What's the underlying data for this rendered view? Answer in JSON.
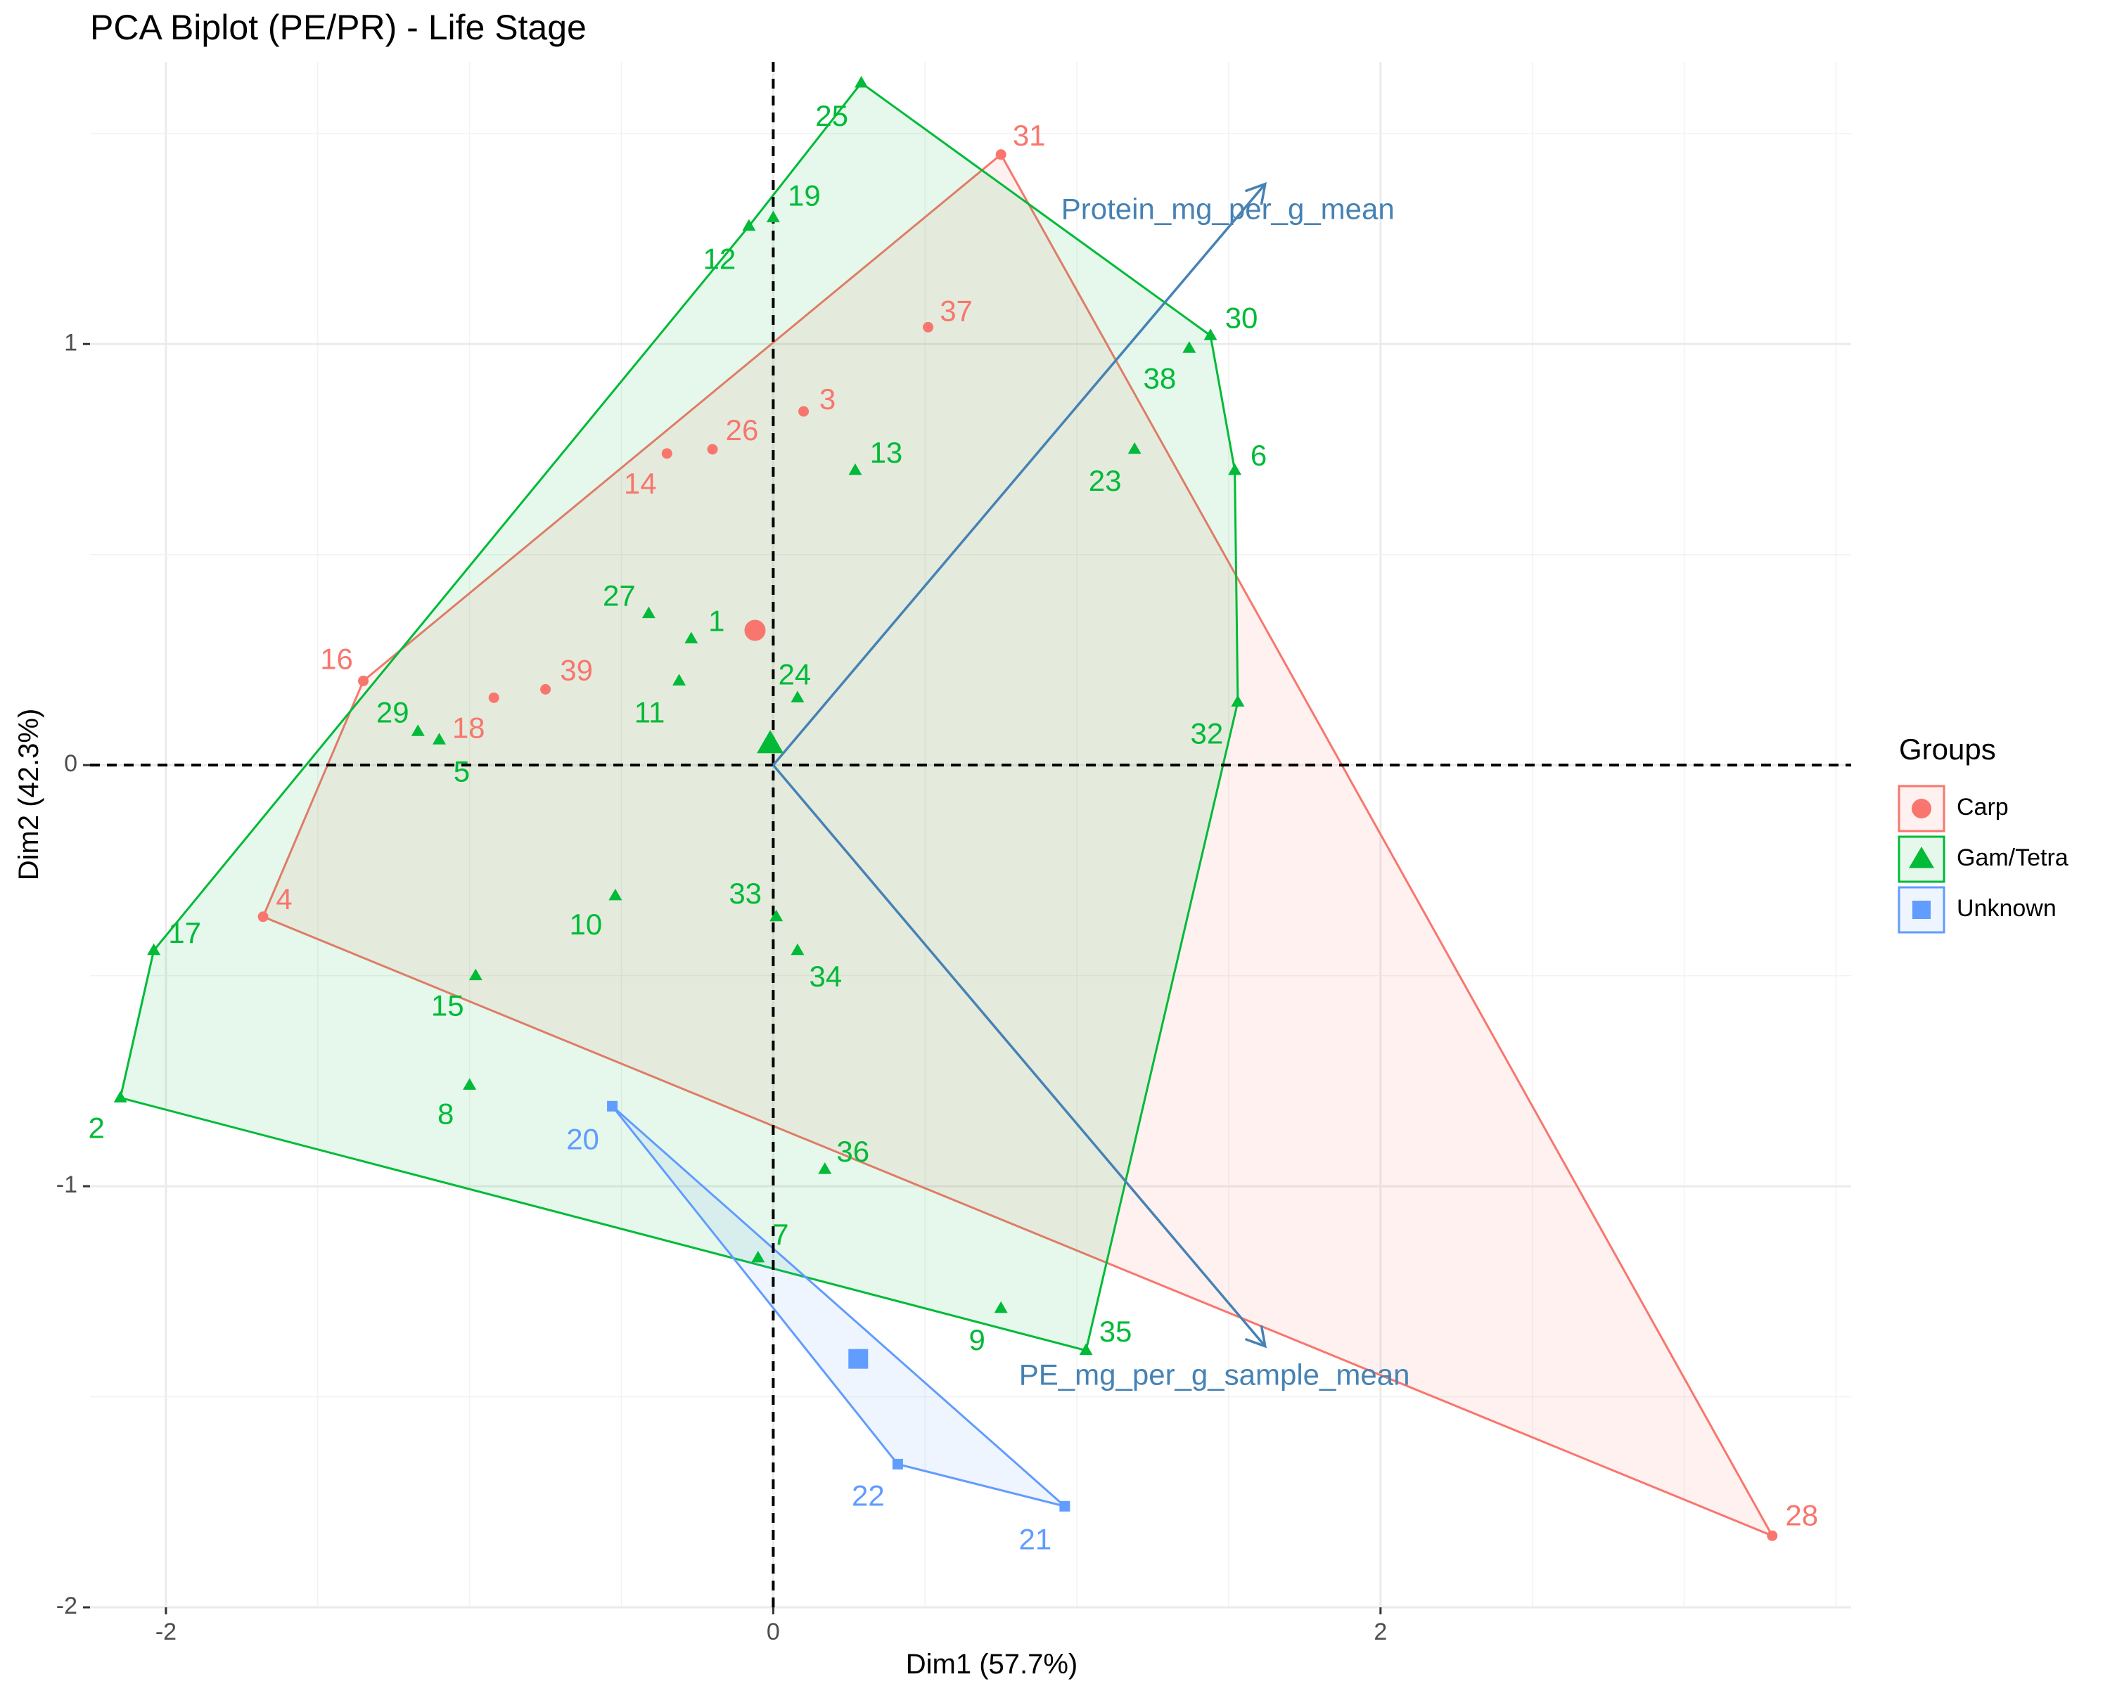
{
  "chart_data": {
    "type": "scatter",
    "title": "PCA Biplot (PE/PR) - Life Stage",
    "xlabel": "Dim1 (57.7%)",
    "ylabel": "Dim2 (42.3%)",
    "xlim": [
      -2.25,
      3.55
    ],
    "ylim": [
      -2.0,
      1.67
    ],
    "x_ticks": [
      {
        "v": -2,
        "label": "-2"
      },
      {
        "v": 0,
        "label": "0"
      },
      {
        "v": 2,
        "label": "2"
      }
    ],
    "y_ticks": [
      {
        "v": -2,
        "label": "-2"
      },
      {
        "v": -1,
        "label": "-1"
      },
      {
        "v": 0,
        "label": "0"
      },
      {
        "v": 1,
        "label": "1"
      }
    ],
    "grid": true,
    "legend": {
      "title": "Groups",
      "position": "right",
      "entries": [
        {
          "name": "Carp",
          "color": "#F8766D",
          "shape": "circle"
        },
        {
          "name": "Gam/Tetra",
          "color": "#00BA38",
          "shape": "triangle"
        },
        {
          "name": "Unknown",
          "color": "#619CFF",
          "shape": "square"
        }
      ]
    },
    "series": [
      {
        "name": "Carp",
        "color": "#F8766D",
        "shape": "circle",
        "points": [
          {
            "label": "31",
            "x": 0.75,
            "y": 1.45
          },
          {
            "label": "37",
            "x": 0.51,
            "y": 1.04
          },
          {
            "label": "3",
            "x": 0.1,
            "y": 0.84
          },
          {
            "label": "26",
            "x": -0.2,
            "y": 0.75
          },
          {
            "label": "14",
            "x": -0.35,
            "y": 0.74
          },
          {
            "label": "16",
            "x": -1.35,
            "y": 0.2
          },
          {
            "label": "39",
            "x": -0.75,
            "y": 0.18
          },
          {
            "label": "18",
            "x": -0.92,
            "y": 0.16
          },
          {
            "label": "4",
            "x": -1.68,
            "y": -0.36
          },
          {
            "label": "28",
            "x": 3.29,
            "y": -1.83
          }
        ],
        "hull": [
          "31",
          "28",
          "4",
          "16"
        ],
        "centroid": {
          "x": -0.06,
          "y": 0.32
        }
      },
      {
        "name": "Gam/Tetra",
        "color": "#00BA38",
        "shape": "triangle",
        "points": [
          {
            "label": "25",
            "x": 0.29,
            "y": 1.62
          },
          {
            "label": "19",
            "x": 0.0,
            "y": 1.3
          },
          {
            "label": "12",
            "x": -0.08,
            "y": 1.28
          },
          {
            "label": "30",
            "x": 1.44,
            "y": 1.02
          },
          {
            "label": "38",
            "x": 1.37,
            "y": 0.99
          },
          {
            "label": "13",
            "x": 0.27,
            "y": 0.7
          },
          {
            "label": "23",
            "x": 1.19,
            "y": 0.75
          },
          {
            "label": "6",
            "x": 1.52,
            "y": 0.7
          },
          {
            "label": "27",
            "x": -0.41,
            "y": 0.36
          },
          {
            "label": "1",
            "x": -0.27,
            "y": 0.3
          },
          {
            "label": "11",
            "x": -0.31,
            "y": 0.2
          },
          {
            "label": "24",
            "x": 0.08,
            "y": 0.16
          },
          {
            "label": "32",
            "x": 1.53,
            "y": 0.15
          },
          {
            "label": "29",
            "x": -1.17,
            "y": 0.08
          },
          {
            "label": "5",
            "x": -1.1,
            "y": 0.06
          },
          {
            "label": "17",
            "x": -2.04,
            "y": -0.44
          },
          {
            "label": "10",
            "x": -0.52,
            "y": -0.31
          },
          {
            "label": "33",
            "x": 0.01,
            "y": -0.36
          },
          {
            "label": "34",
            "x": 0.08,
            "y": -0.44
          },
          {
            "label": "15",
            "x": -0.98,
            "y": -0.5
          },
          {
            "label": "8",
            "x": -1.0,
            "y": -0.76
          },
          {
            "label": "2",
            "x": -2.15,
            "y": -0.79
          },
          {
            "label": "36",
            "x": 0.17,
            "y": -0.96
          },
          {
            "label": "7",
            "x": -0.05,
            "y": -1.17
          },
          {
            "label": "9",
            "x": 0.75,
            "y": -1.29
          },
          {
            "label": "35",
            "x": 1.03,
            "y": -1.39
          }
        ],
        "hull": [
          "25",
          "30",
          "6",
          "32",
          "35",
          "2",
          "17",
          "12"
        ],
        "centroid": {
          "x": -0.01,
          "y": 0.05
        }
      },
      {
        "name": "Unknown",
        "color": "#619CFF",
        "shape": "square",
        "points": [
          {
            "label": "20",
            "x": -0.53,
            "y": -0.81
          },
          {
            "label": "22",
            "x": 0.41,
            "y": -1.66
          },
          {
            "label": "21",
            "x": 0.96,
            "y": -1.76
          }
        ],
        "hull": [
          "20",
          "22",
          "21"
        ],
        "centroid": {
          "x": 0.28,
          "y": -1.41
        }
      }
    ],
    "arrows": [
      {
        "name": "Protein_mg_per_g_mean",
        "x": 1.62,
        "y": 1.38,
        "color": "#4682B4"
      },
      {
        "name": "PE_mg_per_g_sample_mean",
        "x": 1.62,
        "y": -1.38,
        "color": "#4682B4"
      }
    ],
    "reference_lines": {
      "x": 0,
      "y": 0
    }
  }
}
